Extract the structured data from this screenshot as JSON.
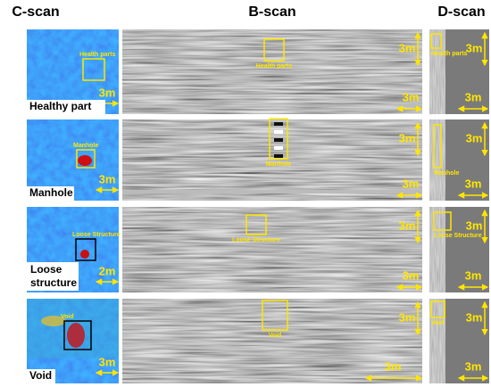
{
  "headers": [
    "C-scan",
    "B-scan",
    "D-scan"
  ],
  "rows": [
    {
      "label": "Healthy part",
      "c_box": "Health parts",
      "c_scale": "3m",
      "b_box": "Health parts",
      "b_scale_v": "3m",
      "b_scale_h": "3m",
      "d_box": "Health parts",
      "d_scale_v": "3m",
      "d_scale_h": "3m"
    },
    {
      "label": "Manhole",
      "c_box": "Manhole",
      "c_scale": "3m",
      "b_box": "Manhole",
      "b_scale_v": "3m",
      "b_scale_h": "3m",
      "d_box": "Manhole",
      "d_scale_v": "3m",
      "d_scale_h": "3m"
    },
    {
      "label": "Loose structure",
      "c_box": "Loose Structure",
      "c_scale": "2m",
      "b_box": "Loose Structure",
      "b_scale_v": "3m",
      "b_scale_h": "3m",
      "d_box": "Loose Structure",
      "d_scale_v": "3m",
      "d_scale_h": "3m"
    },
    {
      "label": "Void",
      "c_box": "Void",
      "c_scale": "3m",
      "b_box": "Void",
      "b_scale_v": "3m",
      "b_scale_h": "3m",
      "d_box": "Void",
      "d_scale_v": "3m",
      "d_scale_h": "3m"
    }
  ]
}
